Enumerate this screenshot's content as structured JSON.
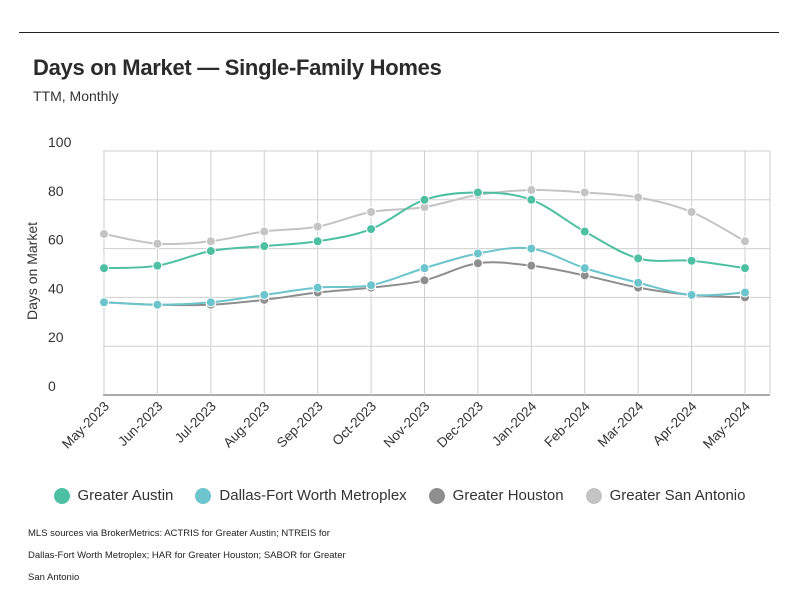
{
  "header": {
    "title": "Days on Market — Single-Family Homes",
    "subtitle": "TTM, Monthly"
  },
  "footer": {
    "source": "MLS sources via BrokerMetrics: ACTRIS for Greater Austin; NTREIS for Dallas-Fort Worth Metroplex; HAR for Greater Houston; SABOR for Greater San Antonio"
  },
  "chart_data": {
    "type": "line",
    "ylabel": "Days on Market",
    "ylim": [
      0,
      100
    ],
    "yticks": [
      0,
      20,
      40,
      60,
      80,
      100
    ],
    "grid": true,
    "legend_position": "bottom",
    "categories": [
      "May-2023",
      "Jun-2023",
      "Jul-2023",
      "Aug-2023",
      "Sep-2023",
      "Oct-2023",
      "Nov-2023",
      "Dec-2023",
      "Jan-2024",
      "Feb-2024",
      "Mar-2024",
      "Apr-2024",
      "May-2024"
    ],
    "series": [
      {
        "name": "Greater Austin",
        "color": "#4dbfa3",
        "values": [
          52,
          53,
          59,
          61,
          63,
          68,
          80,
          83,
          80,
          67,
          56,
          55,
          52
        ]
      },
      {
        "name": "Dallas-Fort Worth Metroplex",
        "color": "#6cc4cc",
        "values": [
          38,
          37,
          38,
          41,
          44,
          45,
          52,
          58,
          60,
          52,
          46,
          41,
          42
        ]
      },
      {
        "name": "Greater Houston",
        "color": "#8e8e8e",
        "values": [
          38,
          37,
          37,
          39,
          42,
          44,
          47,
          54,
          53,
          49,
          44,
          41,
          40
        ]
      },
      {
        "name": "Greater San Antonio",
        "color": "#c4c4c4",
        "values": [
          66,
          62,
          63,
          67,
          69,
          75,
          77,
          82,
          84,
          83,
          81,
          75,
          63
        ]
      }
    ]
  }
}
